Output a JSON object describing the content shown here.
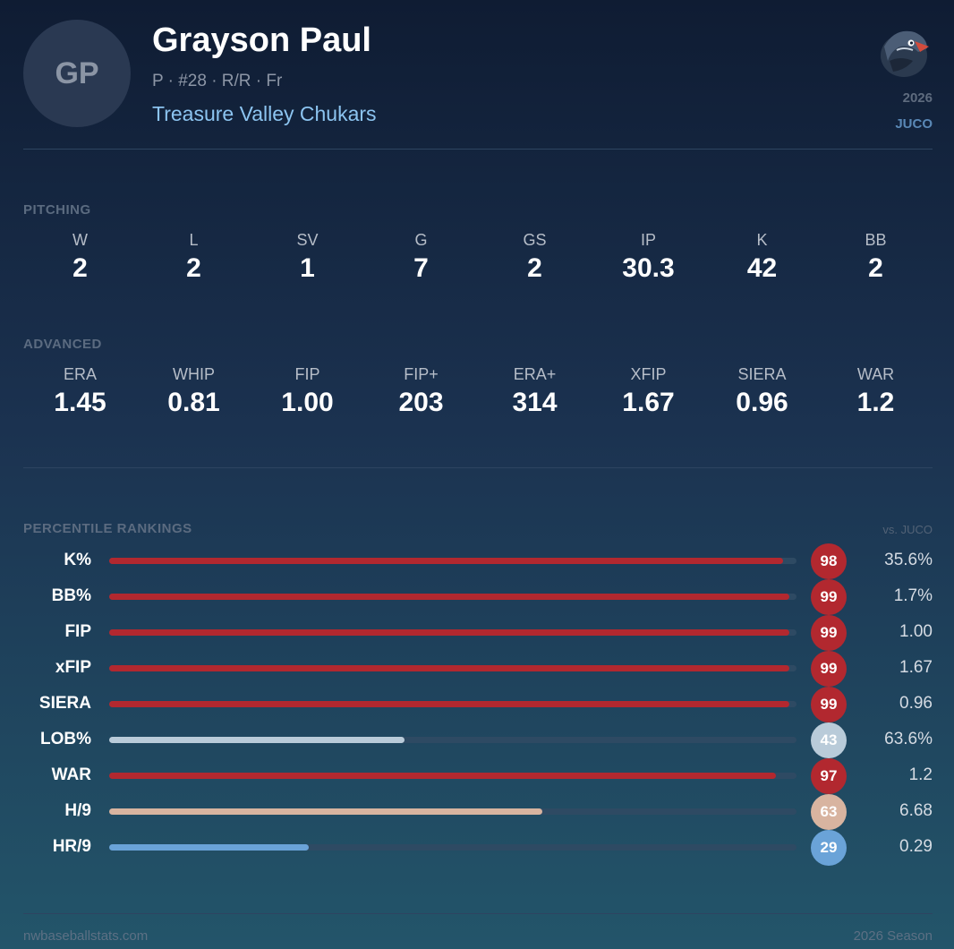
{
  "player": {
    "initials": "GP",
    "name": "Grayson Paul",
    "meta": "P · #28 · R/R · Fr",
    "team": "Treasure Valley Chukars"
  },
  "badge": {
    "logo_icon": "chukar-bird-logo-icon",
    "year": "2026",
    "level": "JUCO"
  },
  "pitching": {
    "label": "PITCHING",
    "stats": [
      {
        "label": "W",
        "value": "2"
      },
      {
        "label": "L",
        "value": "2"
      },
      {
        "label": "SV",
        "value": "1"
      },
      {
        "label": "G",
        "value": "7"
      },
      {
        "label": "GS",
        "value": "2"
      },
      {
        "label": "IP",
        "value": "30.3"
      },
      {
        "label": "K",
        "value": "42"
      },
      {
        "label": "BB",
        "value": "2"
      }
    ]
  },
  "advanced": {
    "label": "ADVANCED",
    "stats": [
      {
        "label": "ERA",
        "value": "1.45"
      },
      {
        "label": "WHIP",
        "value": "0.81"
      },
      {
        "label": "FIP",
        "value": "1.00"
      },
      {
        "label": "FIP+",
        "value": "203"
      },
      {
        "label": "ERA+",
        "value": "314"
      },
      {
        "label": "XFIP",
        "value": "1.67"
      },
      {
        "label": "SIERA",
        "value": "0.96"
      },
      {
        "label": "WAR",
        "value": "1.2"
      }
    ]
  },
  "percentiles": {
    "label": "PERCENTILE RANKINGS",
    "vs": "vs. JUCO",
    "rows": [
      {
        "label": "K%",
        "percentile": 98,
        "value": "35.6%",
        "color": "#b2282f"
      },
      {
        "label": "BB%",
        "percentile": 99,
        "value": "1.7%",
        "color": "#b2282f"
      },
      {
        "label": "FIP",
        "percentile": 99,
        "value": "1.00",
        "color": "#b2282f"
      },
      {
        "label": "xFIP",
        "percentile": 99,
        "value": "1.67",
        "color": "#b2282f"
      },
      {
        "label": "SIERA",
        "percentile": 99,
        "value": "0.96",
        "color": "#b2282f"
      },
      {
        "label": "LOB%",
        "percentile": 43,
        "value": "63.6%",
        "color": "#b9cbd9"
      },
      {
        "label": "WAR",
        "percentile": 97,
        "value": "1.2",
        "color": "#b2282f"
      },
      {
        "label": "H/9",
        "percentile": 63,
        "value": "6.68",
        "color": "#d8b4a0"
      },
      {
        "label": "HR/9",
        "percentile": 29,
        "value": "0.29",
        "color": "#6aa3d8"
      }
    ]
  },
  "footer": {
    "site": "nwbaseballstats.com",
    "season": "2026 Season"
  }
}
